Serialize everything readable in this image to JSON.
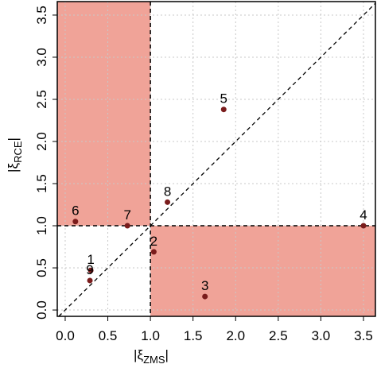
{
  "chart_data": {
    "type": "scatter",
    "x_label": [
      "|ξ",
      "ZMS",
      "|"
    ],
    "y_label": [
      "|ξ",
      "RCE",
      "|"
    ],
    "series": [
      {
        "color": "#7a1c1c",
        "labels": [
          "1",
          "2",
          "3",
          "4",
          "5",
          "6",
          "7",
          "8",
          "9"
        ],
        "x": [
          0.3,
          1.04,
          1.64,
          3.5,
          1.86,
          0.12,
          0.73,
          1.2,
          0.29
        ],
        "values": [
          0.47,
          0.69,
          0.16,
          1.0,
          2.38,
          1.05,
          1.0,
          1.28,
          0.35
        ]
      }
    ],
    "thresholds": {
      "x": 1,
      "y": 1
    },
    "region_color": "#f0a398",
    "xlim": [
      -0.093,
      3.64
    ],
    "ylim": [
      -0.075,
      3.66
    ],
    "xticks": [
      {
        "value": 0,
        "label": "0.0"
      },
      0.5,
      {
        "value": 1,
        "label": "1.0"
      },
      1.5,
      {
        "value": 2,
        "label": "2.0"
      },
      2.5,
      {
        "value": 3,
        "label": "3.0"
      },
      3.5
    ],
    "yticks": [
      {
        "value": 0,
        "label": "0.0"
      },
      0.5,
      {
        "value": 1,
        "label": "1.0"
      },
      1.5,
      {
        "value": 2,
        "label": "2.0"
      },
      2.5,
      {
        "value": 3,
        "label": "3.0"
      },
      3.5
    ],
    "grid": true
  }
}
